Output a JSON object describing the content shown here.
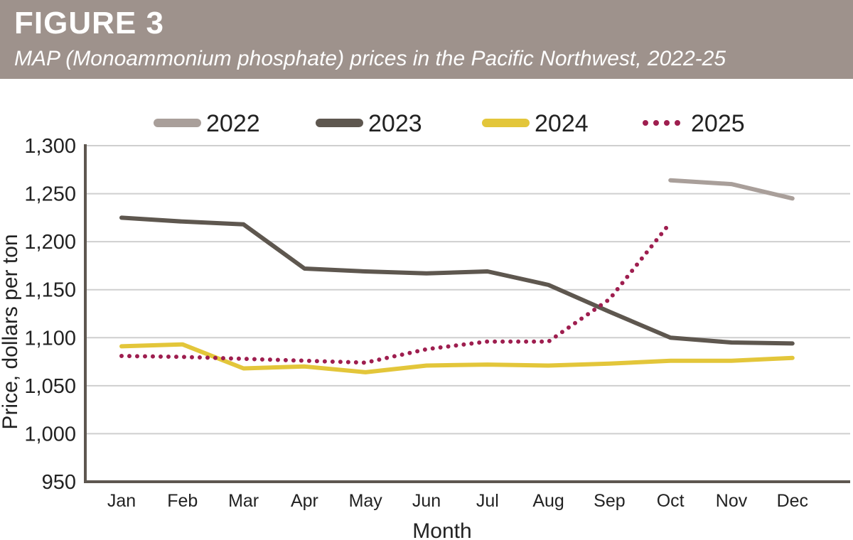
{
  "figure": {
    "label": "FIGURE 3",
    "subtitle": "MAP (Monoammonium phosphate) prices in the Pacific Northwest, 2022-25"
  },
  "colors": {
    "header_bg": "#9e928c",
    "grid": "#cfcfcf",
    "axis": "#5e5750"
  },
  "chart_data": {
    "type": "line",
    "title": "MAP (Monoammonium phosphate) prices in the Pacific Northwest, 2022-25",
    "xlabel": "Month",
    "ylabel": "Price, dollars per ton",
    "categories": [
      "Jan",
      "Feb",
      "Mar",
      "Apr",
      "May",
      "Jun",
      "Jul",
      "Aug",
      "Sep",
      "Oct",
      "Nov",
      "Dec"
    ],
    "ylim": [
      950,
      1300
    ],
    "yticks": [
      950,
      1000,
      1050,
      1100,
      1150,
      1200,
      1250,
      1300
    ],
    "ytick_labels": [
      "950",
      "1,000",
      "1,050",
      "1,100",
      "1,150",
      "1,200",
      "1,250",
      "1,300"
    ],
    "grid": true,
    "legend_position": "top",
    "series": [
      {
        "name": "2022",
        "color": "#a99f9a",
        "style": "solid",
        "values": [
          null,
          null,
          null,
          null,
          null,
          null,
          null,
          null,
          null,
          1264,
          1260,
          1245
        ]
      },
      {
        "name": "2023",
        "color": "#5e574f",
        "style": "solid",
        "values": [
          1225,
          1221,
          1218,
          1172,
          1169,
          1167,
          1169,
          1155,
          1127,
          1100,
          1095,
          1094
        ]
      },
      {
        "name": "2024",
        "color": "#e3c63a",
        "style": "solid",
        "values": [
          1091,
          1093,
          1068,
          1070,
          1064,
          1071,
          1072,
          1071,
          1073,
          1076,
          1076,
          1079
        ]
      },
      {
        "name": "2025",
        "color": "#9e1e4f",
        "style": "dotted",
        "values": [
          1081,
          1080,
          1078,
          1076,
          1074,
          1088,
          1096,
          1096,
          1140,
          1220,
          null,
          null
        ]
      }
    ]
  }
}
